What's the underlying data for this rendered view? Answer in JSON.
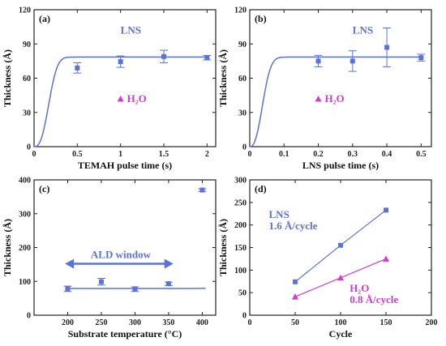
{
  "colors": {
    "lns": "#5b72d6",
    "h2o": "#d23ad2",
    "axis": "#222222"
  },
  "chart_data": [
    {
      "type": "scatter",
      "panel_label": "(a)",
      "xlabel": "TEMAH pulse time (s)",
      "ylabel": "Thickness (Å)",
      "xlim": [
        0,
        2.1
      ],
      "ylim": [
        0,
        120
      ],
      "xticks": [
        0,
        0.5,
        1,
        1.5,
        2
      ],
      "xtick_labels": [
        "0",
        "0.5",
        "1",
        "1.5",
        "2"
      ],
      "yticks": [
        0,
        30,
        60,
        90,
        120
      ],
      "series": [
        {
          "name": "LNS",
          "points": [
            [
              0.5,
              69
            ],
            [
              1.0,
              74.5
            ],
            [
              1.5,
              79
            ],
            [
              2.0,
              78
            ]
          ],
          "err": [
            4.5,
            5,
            5.5,
            2
          ]
        },
        {
          "name": "H2O",
          "points": [
            [
              1.0,
              42
            ]
          ],
          "err": [
            0
          ]
        }
      ],
      "annotations": [
        "LNS",
        "H₂O"
      ]
    },
    {
      "type": "scatter",
      "panel_label": "(b)",
      "xlabel": "LNS pulse time (s)",
      "ylabel": "Thickness (Å)",
      "xlim": [
        0,
        0.53
      ],
      "ylim": [
        0,
        120
      ],
      "xticks": [
        0,
        0.1,
        0.2,
        0.3,
        0.4,
        0.5
      ],
      "xtick_labels": [
        "0",
        "0.1",
        "0.2",
        "0.3",
        "0.4",
        "0.5"
      ],
      "yticks": [
        0,
        30,
        60,
        90,
        120
      ],
      "series": [
        {
          "name": "LNS",
          "points": [
            [
              0.2,
              75
            ],
            [
              0.3,
              75
            ],
            [
              0.4,
              87
            ],
            [
              0.5,
              78
            ]
          ],
          "err": [
            5,
            9,
            17,
            3
          ]
        },
        {
          "name": "H2O",
          "points": [
            [
              0.2,
              42
            ]
          ],
          "err": [
            0
          ]
        }
      ],
      "annotations": [
        "LNS",
        "H₂O"
      ]
    },
    {
      "type": "scatter",
      "panel_label": "(c)",
      "xlabel": "Substrate temperature (°C)",
      "ylabel": "Thickness (Å)",
      "xlim": [
        150,
        420
      ],
      "ylim": [
        0,
        400
      ],
      "xticks": [
        200,
        250,
        300,
        350,
        400
      ],
      "xtick_labels": [
        "200",
        "250",
        "300",
        "350",
        "400"
      ],
      "yticks": [
        0,
        100,
        200,
        300,
        400
      ],
      "series": [
        {
          "name": "",
          "points": [
            [
              200,
              78
            ],
            [
              250,
              99
            ],
            [
              300,
              77
            ],
            [
              350,
              93
            ],
            [
              400,
              370
            ]
          ],
          "err": [
            8,
            10,
            7,
            5,
            4
          ]
        }
      ],
      "annotations": [
        "ALD window"
      ]
    },
    {
      "type": "line",
      "panel_label": "(d)",
      "xlabel": "Cycle",
      "ylabel": "Thickness (Å)",
      "xlim": [
        0,
        200
      ],
      "ylim": [
        0,
        300
      ],
      "xticks": [
        0,
        50,
        100,
        150,
        200
      ],
      "xtick_labels": [
        "0",
        "50",
        "100",
        "150",
        "200"
      ],
      "yticks": [
        0,
        50,
        100,
        150,
        200,
        250,
        300
      ],
      "series": [
        {
          "name": "LNS",
          "points": [
            [
              50,
              74
            ],
            [
              100,
              155
            ],
            [
              150,
              233
            ]
          ]
        },
        {
          "name": "H2O",
          "points": [
            [
              50,
              41
            ],
            [
              100,
              83
            ],
            [
              150,
              125
            ]
          ]
        }
      ],
      "annotations": [
        "LNS",
        "1.6 Å/cycle",
        "H₂O",
        "0.8 Å/cycle"
      ]
    }
  ]
}
